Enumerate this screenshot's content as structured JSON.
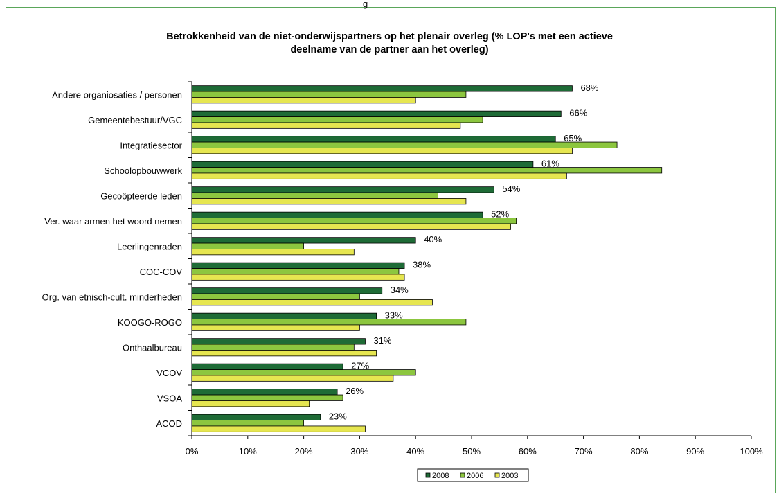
{
  "top_mark": "g",
  "chart_data": {
    "type": "bar",
    "orientation": "horizontal",
    "title": [
      "Betrokkenheid van de niet-onderwijspartners op het plenair overleg (% LOP's met een actieve",
      "deelname van de partner aan het overleg)"
    ],
    "xlabel": "",
    "ylabel": "",
    "xlim": [
      0,
      100
    ],
    "x_ticks": [
      "0%",
      "10%",
      "20%",
      "30%",
      "40%",
      "50%",
      "60%",
      "70%",
      "80%",
      "90%",
      "100%"
    ],
    "grid": false,
    "legend_position": "bottom",
    "categories": [
      "Andere organiosaties / personen",
      "Gemeentebestuur/VGC",
      "Integratiesector",
      "Schoolopbouwwerk",
      "Gecoöpteerde leden",
      "Ver. waar armen het woord nemen",
      "Leerlingenraden",
      "COC-COV",
      "Org. van etnisch-cult. minderheden",
      "KOOGO-ROGO",
      "Onthaalbureau",
      "VCOV",
      "VSOA",
      "ACOD"
    ],
    "series": [
      {
        "name": "2008",
        "color": "#1e6b36",
        "values": [
          68,
          66,
          65,
          61,
          54,
          52,
          40,
          38,
          34,
          33,
          31,
          27,
          26,
          23
        ],
        "data_labels": [
          "68%",
          "66%",
          "65%",
          "61%",
          "54%",
          "52%",
          "40%",
          "38%",
          "34%",
          "33%",
          "31%",
          "27%",
          "26%",
          "23%"
        ]
      },
      {
        "name": "2006",
        "color": "#8cc63f",
        "values": [
          49,
          52,
          76,
          84,
          44,
          58,
          20,
          37,
          30,
          49,
          29,
          40,
          27,
          20
        ]
      },
      {
        "name": "2003",
        "color": "#e6e650",
        "values": [
          40,
          48,
          68,
          67,
          49,
          57,
          29,
          38,
          43,
          30,
          33,
          36,
          21,
          31
        ]
      }
    ]
  }
}
